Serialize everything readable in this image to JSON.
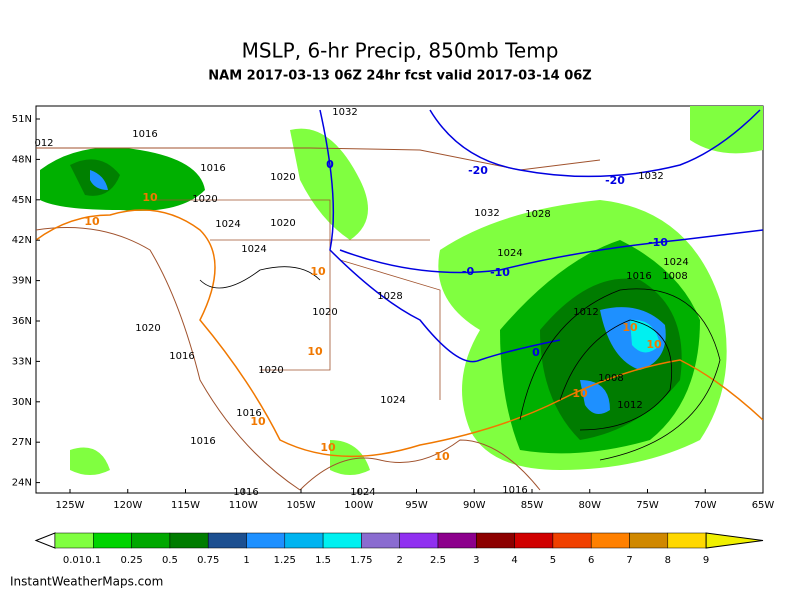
{
  "header": {
    "title": "MSLP, 6-hr Precip, 850mb Temp",
    "subtitle": "NAM 2017-03-13 06Z 24hr fcst valid 2017-03-14 06Z"
  },
  "map": {
    "lat_labels": [
      "51N",
      "48N",
      "45N",
      "42N",
      "39N",
      "36N",
      "33N",
      "30N",
      "27N",
      "24N"
    ],
    "lon_labels": [
      "125W",
      "120W",
      "115W",
      "110W",
      "105W",
      "100W",
      "95W",
      "90W",
      "85W",
      "80W",
      "75W",
      "70W",
      "65W"
    ],
    "isobar_labels": [
      "1032",
      "1016",
      "012",
      "1016",
      "1020",
      "1020",
      "1024",
      "1020",
      "1024",
      "1020",
      "1020",
      "1016",
      "1020",
      "1028",
      "1024",
      "1032",
      "1028",
      "1024",
      "1032",
      "1016",
      "1012",
      "1008",
      "1012",
      "1016",
      "1024",
      "1016",
      "1016",
      "1024",
      "1016",
      "1008"
    ],
    "blue_temp_labels": [
      "-20",
      "-20",
      "0",
      "-10",
      "-10",
      "0",
      "-0"
    ],
    "orange_temp_labels": [
      "10",
      "10",
      "10",
      "10",
      "10",
      "10",
      "10",
      "10",
      "10",
      "10"
    ]
  },
  "legend": {
    "items": [
      {
        "label": "0.01",
        "color": "#80ff40"
      },
      {
        "label": "0.1",
        "color": "#00d400"
      },
      {
        "label": "0.25",
        "color": "#00a800"
      },
      {
        "label": "0.5",
        "color": "#007c00"
      },
      {
        "label": "0.75",
        "color": "#1c4f90"
      },
      {
        "label": "1",
        "color": "#1e90ff"
      },
      {
        "label": "1.25",
        "color": "#00b4f0"
      },
      {
        "label": "1.5",
        "color": "#00f0f0"
      },
      {
        "label": "1.75",
        "color": "#8a6cd0"
      },
      {
        "label": "2",
        "color": "#9030f0"
      },
      {
        "label": "2.5",
        "color": "#8c008c"
      },
      {
        "label": "3",
        "color": "#8c0000"
      },
      {
        "label": "4",
        "color": "#d00000"
      },
      {
        "label": "5",
        "color": "#f04000"
      },
      {
        "label": "6",
        "color": "#ff8000"
      },
      {
        "label": "7",
        "color": "#d08800"
      },
      {
        "label": "8",
        "color": "#ffd800"
      },
      {
        "label": "9",
        "color": "#f0f000"
      }
    ]
  },
  "footer": {
    "credit": "InstantWeatherMaps.com"
  }
}
